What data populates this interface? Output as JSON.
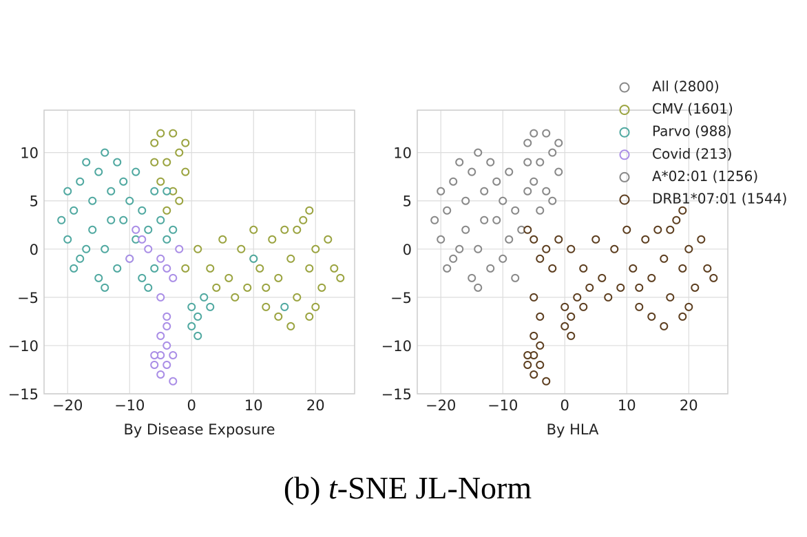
{
  "figure": {
    "caption": {
      "prefix": "(b)",
      "italic": "t",
      "suffix": "-SNE JL-Norm"
    },
    "legend": {
      "loc": "upper right",
      "entries": [
        {
          "name": "All (2800)",
          "color": "#888888"
        },
        {
          "name": "CMV (1601)",
          "color": "#9aa33f"
        },
        {
          "name": "Parvo (988)",
          "color": "#4fa8a0"
        },
        {
          "name": "Covid (213)",
          "color": "#a98de6"
        },
        {
          "name": "A*02:01 (1256)",
          "color": "#888888"
        },
        {
          "name": "DRB1*07:01 (1544)",
          "color": "#5c3d1e"
        }
      ]
    }
  },
  "chart_data": [
    {
      "type": "scatter",
      "xlabel": "By Disease Exposure",
      "grid": true,
      "xlim": [
        -23.8,
        26.3
      ],
      "ylim": [
        -15,
        14.4
      ],
      "xticks": [
        {
          "value": -20,
          "label": "−20"
        },
        {
          "value": -10,
          "label": "−10"
        },
        0,
        10,
        20
      ],
      "yticks": [
        {
          "value": -15,
          "label": "−15"
        },
        {
          "value": -10,
          "label": "−10"
        },
        {
          "value": -5,
          "label": "−5"
        },
        0,
        5,
        10
      ],
      "series": [
        {
          "color": "#9aa33f",
          "x": [
            -6,
            -5,
            -4,
            -3,
            -2,
            -1,
            -5,
            -3,
            -2,
            -4,
            -6,
            -1,
            1,
            3,
            5,
            6,
            8,
            9,
            10,
            11,
            12,
            13,
            14,
            15,
            16,
            17,
            18,
            19,
            20,
            21,
            22,
            23,
            16,
            12,
            14,
            19,
            7,
            4,
            -1,
            24,
            19,
            20,
            10,
            17
          ],
          "y": [
            11,
            12,
            9,
            12,
            10,
            8,
            7,
            6,
            5,
            4,
            9,
            11,
            0,
            -2,
            1,
            -3,
            0,
            -4,
            2,
            -2,
            -6,
            1,
            -3,
            2,
            -1,
            -5,
            3,
            -2,
            0,
            -4,
            1,
            -2,
            -8,
            -4,
            -7,
            -7,
            -5,
            -4,
            -2,
            -3,
            4,
            -6,
            -1,
            2
          ]
        },
        {
          "color": "#4fa8a0",
          "x": [
            -20,
            -19,
            -18,
            -17,
            -16,
            -15,
            -14,
            -13,
            -12,
            -11,
            -10,
            -9,
            -8,
            -7,
            -6,
            -5,
            -20,
            -18,
            -16,
            -14,
            -12,
            -10,
            -8,
            -6,
            -4,
            -15,
            -11,
            -13,
            -17,
            -19,
            -9,
            -7,
            -3,
            0,
            1,
            2,
            0,
            3,
            1,
            -21,
            -4,
            -14,
            10,
            15
          ],
          "y": [
            6,
            4,
            7,
            9,
            5,
            8,
            10,
            6,
            9,
            7,
            5,
            8,
            4,
            2,
            6,
            3,
            1,
            -1,
            2,
            0,
            -2,
            -1,
            -3,
            -2,
            1,
            -3,
            3,
            3,
            0,
            -2,
            1,
            -4,
            2,
            -6,
            -7,
            -5,
            -8,
            -6,
            -9,
            3,
            6,
            -4,
            -1,
            -6
          ]
        },
        {
          "color": "#a98de6",
          "x": [
            -9,
            -8,
            -10,
            -7,
            -5,
            -4,
            -5,
            -4,
            -5,
            -4,
            -5,
            -6,
            -4,
            -5,
            -3,
            -6,
            -3,
            -4,
            -2,
            -3
          ],
          "y": [
            2,
            1,
            -1,
            0,
            -1,
            -2,
            -5,
            -7,
            -9,
            -10,
            -11,
            -12,
            -12,
            -13,
            -13.7,
            -11,
            -11,
            -8,
            0,
            -3
          ]
        }
      ]
    },
    {
      "type": "scatter",
      "xlabel": "By HLA",
      "grid": true,
      "xlim": [
        -23.8,
        26.3
      ],
      "ylim": [
        -15,
        14.4
      ],
      "xticks": [
        {
          "value": -20,
          "label": "−20"
        },
        {
          "value": -10,
          "label": "−10"
        },
        0,
        10,
        20
      ],
      "yticks": [
        {
          "value": -15,
          "label": "−15"
        },
        {
          "value": -10,
          "label": "−10"
        },
        {
          "value": -5,
          "label": "−5"
        },
        0,
        5,
        10
      ],
      "series": [
        {
          "color": "#888888",
          "x": [
            -20,
            -19,
            -18,
            -17,
            -16,
            -15,
            -14,
            -13,
            -12,
            -11,
            -10,
            -9,
            -8,
            -7,
            -6,
            -20,
            -18,
            -16,
            -14,
            -12,
            -10,
            -8,
            -15,
            -11,
            -13,
            -17,
            -19,
            -9,
            -21,
            -14,
            -6,
            -5,
            -4,
            -3,
            -2,
            -1,
            -5,
            -3,
            -2,
            -4,
            -6,
            -1
          ],
          "y": [
            6,
            4,
            7,
            9,
            5,
            8,
            10,
            6,
            9,
            7,
            5,
            8,
            4,
            2,
            6,
            1,
            -1,
            2,
            0,
            -2,
            -1,
            -3,
            -3,
            3,
            3,
            0,
            -2,
            1,
            3,
            -4,
            11,
            12,
            9,
            12,
            10,
            8,
            7,
            6,
            5,
            4,
            9,
            11
          ]
        },
        {
          "color": "#5c3d1e",
          "x": [
            -6,
            -5,
            -4,
            -3,
            -2,
            -1,
            1,
            3,
            5,
            6,
            8,
            9,
            10,
            11,
            12,
            13,
            14,
            15,
            16,
            17,
            18,
            19,
            20,
            21,
            22,
            23,
            16,
            12,
            14,
            19,
            7,
            4,
            24,
            19,
            20,
            17,
            0,
            1,
            2,
            0,
            3,
            1,
            -5,
            -4,
            -5,
            -4,
            -5,
            -6,
            -4,
            -5,
            -3,
            -6
          ],
          "y": [
            2,
            1,
            -1,
            0,
            -2,
            1,
            0,
            -2,
            1,
            -3,
            0,
            -4,
            2,
            -2,
            -6,
            1,
            -3,
            2,
            -1,
            -5,
            3,
            -2,
            0,
            -4,
            1,
            -2,
            -8,
            -4,
            -7,
            -7,
            -5,
            -4,
            -3,
            4,
            -6,
            2,
            -6,
            -7,
            -5,
            -8,
            -6,
            -9,
            -5,
            -7,
            -9,
            -10,
            -11,
            -12,
            -12,
            -13,
            -13.7,
            -11
          ]
        }
      ]
    }
  ]
}
